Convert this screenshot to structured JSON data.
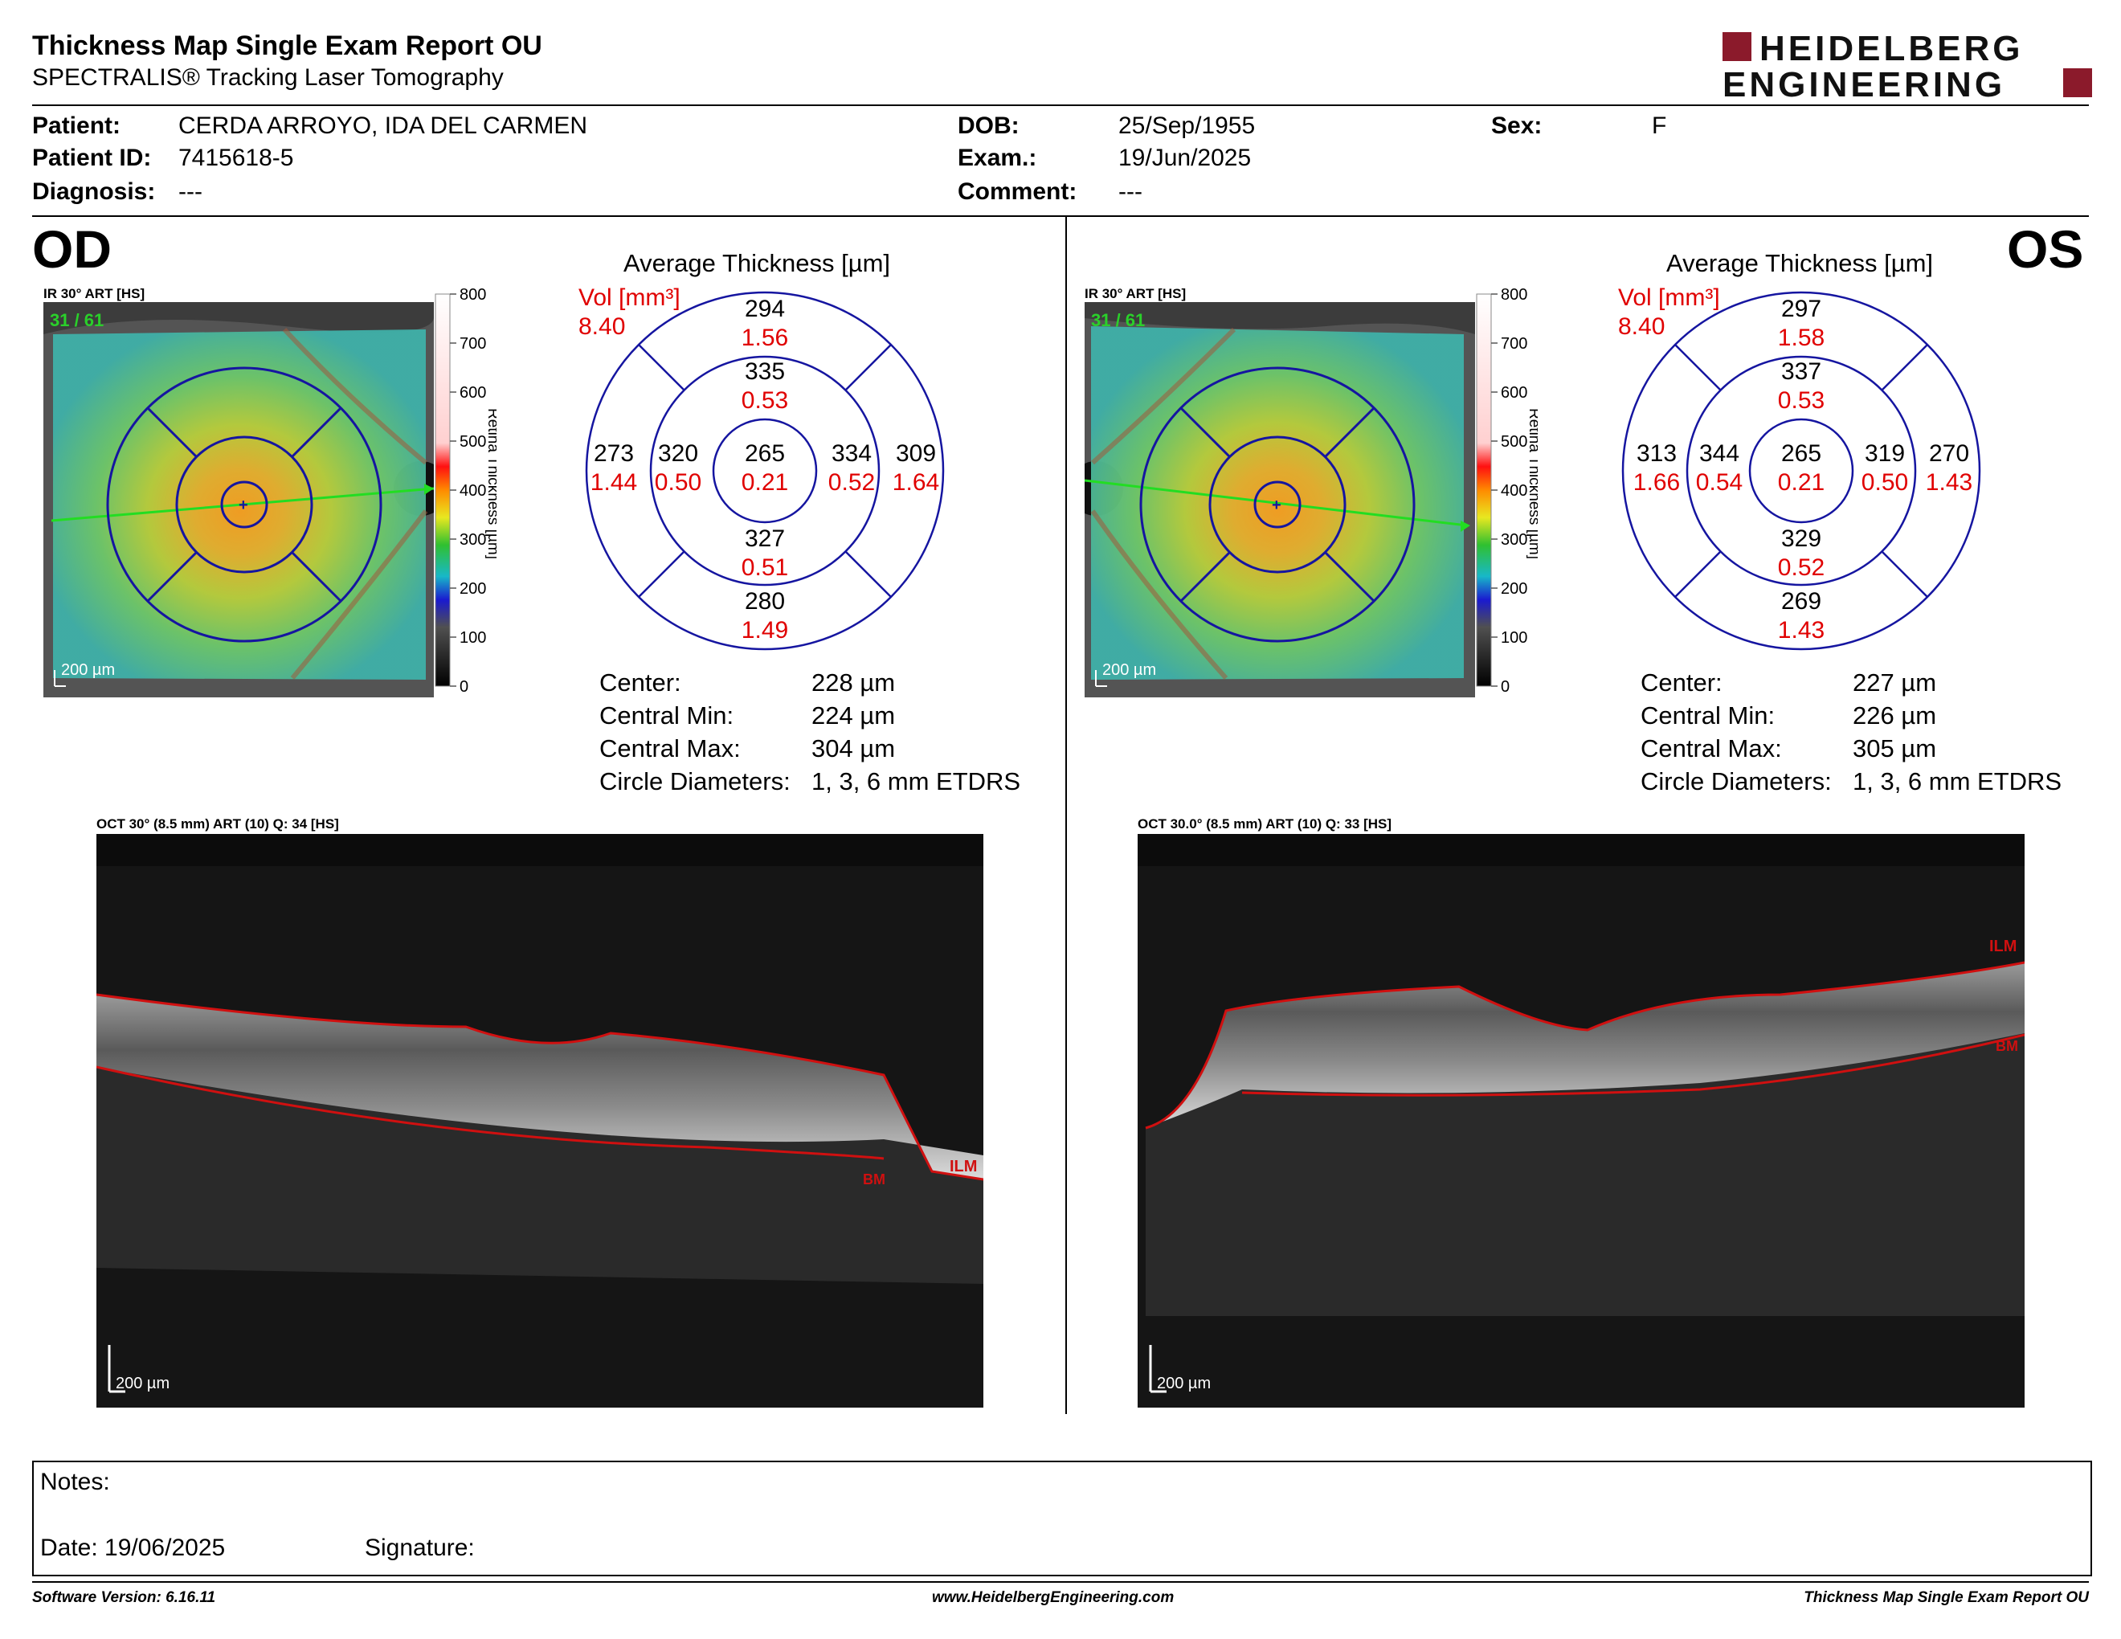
{
  "header": {
    "title": "Thickness Map Single Exam Report OU",
    "subtitle": "SPECTRALIS® Tracking Laser Tomography",
    "logo_line1": "HEIDELBERG",
    "logo_line2": "ENGINEERING",
    "brand_color": "#8b1a2b"
  },
  "patient": {
    "patient_label": "Patient:",
    "patient": "CERDA ARROYO, IDA DEL CARMEN",
    "id_label": "Patient ID:",
    "id": "7415618-5",
    "diagnosis_label": "Diagnosis:",
    "diagnosis": "---",
    "dob_label": "DOB:",
    "dob": "25/Sep/1955",
    "exam_label": "Exam.:",
    "exam": "19/Jun/2025",
    "comment_label": "Comment:",
    "comment": "---",
    "sex_label": "Sex:",
    "sex": "F"
  },
  "colorbar": {
    "ticks": [
      "800",
      "700",
      "600",
      "500",
      "400",
      "300",
      "200",
      "100",
      "0"
    ],
    "label": "Retina  Thickness [µm]"
  },
  "od": {
    "eye": "OD",
    "ir_label": "IR 30° ART [HS]",
    "ir_counter": "31 / 61",
    "scale": "200 µm",
    "avg_title": "Average Thickness [µm]",
    "vol_label": "Vol [mm³]",
    "vol_total": "8.40",
    "sectors": {
      "outer_sup": {
        "t": "294",
        "v": "1.56"
      },
      "inner_sup": {
        "t": "335",
        "v": "0.53"
      },
      "outer_temp": {
        "t": "273",
        "v": "1.44"
      },
      "inner_temp": {
        "t": "320",
        "v": "0.50"
      },
      "center": {
        "t": "265",
        "v": "0.21"
      },
      "inner_nas": {
        "t": "334",
        "v": "0.52"
      },
      "outer_nas": {
        "t": "309",
        "v": "1.64"
      },
      "inner_inf": {
        "t": "327",
        "v": "0.51"
      },
      "outer_inf": {
        "t": "280",
        "v": "1.49"
      }
    },
    "stats": [
      {
        "label": "Center:",
        "value": "228 µm"
      },
      {
        "label": "Central Min:",
        "value": "224 µm"
      },
      {
        "label": "Central Max:",
        "value": "304 µm"
      },
      {
        "label": "Circle Diameters:",
        "value": "1, 3, 6 mm ETDRS"
      }
    ],
    "oct_label": "OCT 30° (8.5 mm) ART (10) Q: 34 [HS]",
    "oct_scale": "200 µm",
    "ilm": "ILM",
    "bm": "BM"
  },
  "os": {
    "eye": "OS",
    "ir_label": "IR 30° ART [HS]",
    "ir_counter": "31 / 61",
    "scale": "200 µm",
    "avg_title": "Average Thickness [µm]",
    "vol_label": "Vol [mm³]",
    "vol_total": "8.40",
    "sectors": {
      "outer_sup": {
        "t": "297",
        "v": "1.58"
      },
      "inner_sup": {
        "t": "337",
        "v": "0.53"
      },
      "outer_temp": {
        "t": "313",
        "v": "1.66"
      },
      "inner_temp": {
        "t": "344",
        "v": "0.54"
      },
      "center": {
        "t": "265",
        "v": "0.21"
      },
      "inner_nas": {
        "t": "319",
        "v": "0.50"
      },
      "outer_nas": {
        "t": "270",
        "v": "1.43"
      },
      "inner_inf": {
        "t": "329",
        "v": "0.52"
      },
      "outer_inf": {
        "t": "269",
        "v": "1.43"
      }
    },
    "stats": [
      {
        "label": "Center:",
        "value": "227 µm"
      },
      {
        "label": "Central Min:",
        "value": "226 µm"
      },
      {
        "label": "Central Max:",
        "value": "305 µm"
      },
      {
        "label": "Circle Diameters:",
        "value": "1, 3, 6 mm ETDRS"
      }
    ],
    "oct_label": "OCT 30.0° (8.5 mm) ART (10) Q: 33 [HS]",
    "oct_scale": "200 µm",
    "ilm": "ILM",
    "bm": "BM"
  },
  "notes": {
    "notes_label": "Notes:",
    "date_label": "Date: 19/06/2025",
    "signature_label": "Signature:"
  },
  "footer": {
    "software": "Software Version: 6.16.11",
    "website": "www.HeidelbergEngineering.com",
    "report": "Thickness Map Single Exam Report OU"
  },
  "colors": {
    "thickness_black": "#000000",
    "volume_red": "#e00000",
    "grid_blue": "#1a1aa0",
    "segmentation_red": "#d01010"
  }
}
